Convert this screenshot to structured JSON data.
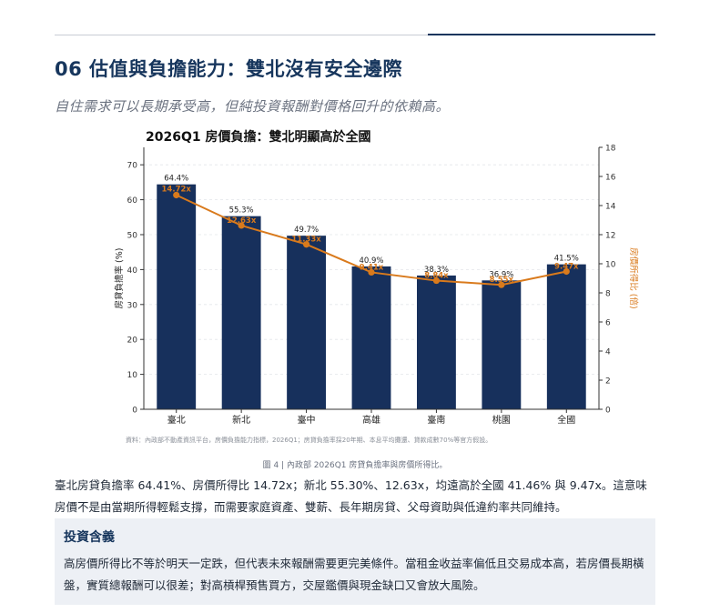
{
  "header": {
    "title": "06  估值與負擔能力：雙北沒有安全邊際",
    "subtitle": "自住需求可以長期承受高，但純投資報酬對價格回升的依賴高。"
  },
  "chart_data": {
    "type": "bar",
    "title": "2026Q1 房價負擔：雙北明顯高於全國",
    "categories": [
      "臺北",
      "新北",
      "臺中",
      "高雄",
      "臺南",
      "桃園",
      "全國"
    ],
    "series": [
      {
        "name": "房貸負擔率 (%)",
        "kind": "bar",
        "axis": "left",
        "values": [
          64.4,
          55.3,
          49.7,
          40.9,
          38.3,
          36.9,
          41.5
        ],
        "labels": [
          "64.4%",
          "55.3%",
          "49.7%",
          "40.9%",
          "38.3%",
          "36.9%",
          "41.5%"
        ]
      },
      {
        "name": "房價所得比 (倍)",
        "kind": "line",
        "axis": "right",
        "values": [
          14.72,
          12.63,
          11.33,
          9.41,
          8.84,
          8.55,
          9.47
        ],
        "labels": [
          "14.72x",
          "12.63x",
          "11.33x",
          "9.41x",
          "8.84x",
          "8.55x",
          "9.47x"
        ]
      }
    ],
    "ylabel": "房貸負擔率 (%)",
    "y2label": "房價所得比 (倍)",
    "ylim": [
      0,
      75
    ],
    "y2lim": [
      0,
      18
    ],
    "yticks": [
      "0",
      "10",
      "20",
      "30",
      "40",
      "50",
      "60",
      "70"
    ],
    "y2ticks": [
      "0",
      "2",
      "4",
      "6",
      "8",
      "10",
      "12",
      "14",
      "16",
      "18"
    ],
    "grid": "horizontal",
    "source_note": "資料：內政部不動產資訊平台，房價負擔能力指標，2026Q1；房貸負擔率採20年期、本息平均攤還、貸款成數70%等官方假設。",
    "colors": {
      "bar": "#17305c",
      "line": "#d97a1c",
      "grid": "#e3e6ea",
      "axis": "#333333"
    }
  },
  "caption": "圖 4 | 內政部 2026Q1 房貸負擔率與房價所得比。",
  "body": {
    "paragraph": "臺北房貸負擔率 64.41%、房價所得比 14.72x；新北 55.30%、12.63x，均遠高於全國 41.46% 與 9.47x。這意味房價不是由當期所得輕鬆支撐，而需要家庭資產、雙薪、長年期房貸、父母資助與低違約率共同維持。"
  },
  "callout": {
    "title": "投資含義",
    "text": "高房價所得比不等於明天一定跌，但代表未來報酬需要更完美條件。當租金收益率偏低且交易成本高，若房價長期橫盤，實質總報酬可以很差；對高槓桿預售買方，交屋鑑價與現金缺口又會放大風險。"
  }
}
